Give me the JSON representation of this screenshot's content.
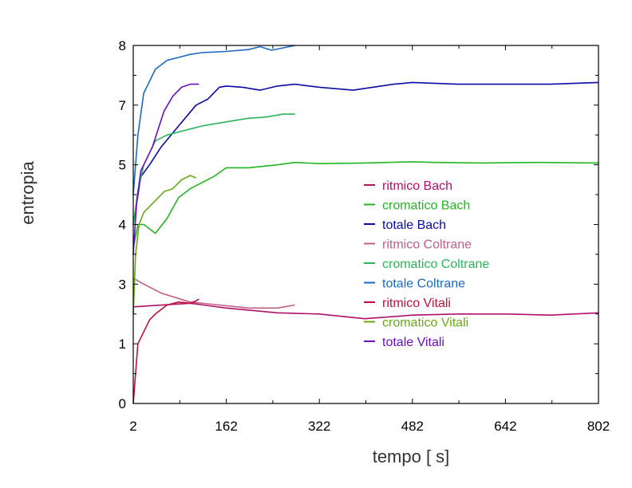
{
  "chart_data": {
    "type": "line",
    "title": "",
    "xlabel": "tempo [   s]",
    "ylabel": "entropia",
    "xlim": [
      2,
      802
    ],
    "ylim": [
      0,
      8
    ],
    "xticks": [
      2,
      162,
      322,
      482,
      642,
      802
    ],
    "yticks": [
      {
        "value": 0,
        "label": "0"
      },
      {
        "value": 1,
        "label": "1"
      },
      {
        "value": 2,
        "label": "3"
      },
      {
        "value": 3,
        "label": "4"
      },
      {
        "value": 4,
        "label": "5"
      },
      {
        "value": 5,
        "label": "7"
      },
      {
        "value": 6,
        "label": "8"
      }
    ],
    "ylim_internal": [
      0,
      6
    ],
    "grid": false,
    "legend_position": "center-right",
    "series": [
      {
        "name": "ritmico Bach",
        "color": "#b0106a",
        "x": [
          2,
          100,
          162,
          250,
          322,
          400,
          482,
          560,
          642,
          720,
          802
        ],
        "y": [
          1.62,
          1.68,
          1.6,
          1.52,
          1.5,
          1.42,
          1.48,
          1.5,
          1.5,
          1.48,
          1.52
        ]
      },
      {
        "name": "cromatico Bach",
        "color": "#22b522",
        "x": [
          2,
          10,
          20,
          40,
          60,
          80,
          100,
          120,
          140,
          162,
          200,
          250,
          280,
          322,
          400,
          482,
          520,
          600,
          700,
          802
        ],
        "y": [
          2.6,
          3.0,
          3.0,
          2.85,
          3.1,
          3.45,
          3.6,
          3.7,
          3.8,
          3.95,
          3.95,
          4.0,
          4.04,
          4.02,
          4.03,
          4.05,
          4.04,
          4.03,
          4.04,
          4.03
        ]
      },
      {
        "name": "totale Bach",
        "color": "#0a0aa5",
        "x": [
          2,
          15,
          30,
          50,
          80,
          110,
          130,
          150,
          162,
          190,
          220,
          250,
          280,
          322,
          380,
          450,
          482,
          560,
          642,
          720,
          802
        ],
        "y": [
          3.0,
          3.8,
          4.0,
          4.3,
          4.65,
          5.0,
          5.1,
          5.3,
          5.32,
          5.3,
          5.25,
          5.32,
          5.35,
          5.3,
          5.25,
          5.35,
          5.38,
          5.35,
          5.35,
          5.35,
          5.38
        ]
      },
      {
        "name": "ritmico Coltrane",
        "color": "#c06080",
        "x": [
          2,
          20,
          50,
          100,
          150,
          200,
          250,
          280
        ],
        "y": [
          2.1,
          2.0,
          1.85,
          1.7,
          1.65,
          1.6,
          1.6,
          1.65
        ]
      },
      {
        "name": "cromatico Coltrane",
        "color": "#2ab55a",
        "x": [
          2,
          10,
          20,
          40,
          60,
          80,
          100,
          120,
          162,
          200,
          230,
          260,
          280
        ],
        "y": [
          3.0,
          3.55,
          4.0,
          4.4,
          4.5,
          4.55,
          4.6,
          4.65,
          4.72,
          4.78,
          4.8,
          4.85,
          4.85
        ]
      },
      {
        "name": "totale Coltrane",
        "color": "#1a6abf",
        "x": [
          2,
          10,
          20,
          40,
          60,
          80,
          100,
          120,
          162,
          200,
          220,
          240,
          260,
          280
        ],
        "y": [
          3.5,
          4.5,
          5.2,
          5.6,
          5.75,
          5.8,
          5.85,
          5.88,
          5.9,
          5.93,
          5.98,
          5.92,
          5.96,
          6.0
        ]
      },
      {
        "name": "ritmico Vitali",
        "color": "#c0103a",
        "x": [
          2,
          6,
          10,
          20,
          30,
          40,
          60,
          80,
          100,
          110,
          115
        ],
        "y": [
          0.0,
          0.5,
          1.0,
          1.2,
          1.4,
          1.5,
          1.65,
          1.7,
          1.68,
          1.72,
          1.75
        ]
      },
      {
        "name": "cromatico Vitali",
        "color": "#66aa14",
        "x": [
          2,
          6,
          12,
          20,
          30,
          40,
          55,
          70,
          85,
          100,
          110
        ],
        "y": [
          1.5,
          2.5,
          3.0,
          3.2,
          3.3,
          3.4,
          3.55,
          3.6,
          3.75,
          3.82,
          3.78
        ]
      },
      {
        "name": "totale Vitali",
        "color": "#6a10c0",
        "x": [
          2,
          8,
          15,
          25,
          35,
          45,
          55,
          70,
          85,
          100,
          115
        ],
        "y": [
          2.5,
          3.4,
          3.9,
          4.1,
          4.3,
          4.6,
          4.9,
          5.15,
          5.3,
          5.35,
          5.35
        ]
      }
    ]
  }
}
